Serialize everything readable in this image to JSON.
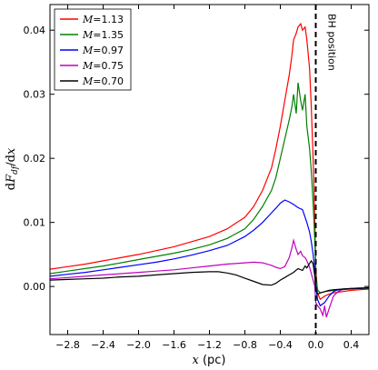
{
  "chart_data": {
    "type": "line",
    "xlabel": "x (pc)",
    "ylabel": "dF_df/dx",
    "xlim": [
      -3.0,
      0.6
    ],
    "ylim": [
      -0.0075,
      0.044
    ],
    "xticks": [
      -2.8,
      -2.4,
      -2.0,
      -1.6,
      -1.2,
      -0.8,
      -0.4,
      0.0,
      0.4
    ],
    "xtick_labels": [
      "−2.8",
      "−2.4",
      "−2.0",
      "−1.6",
      "−1.2",
      "−0.8",
      "−0.4",
      "0.0",
      "0.4"
    ],
    "yticks": [
      0.0,
      0.01,
      0.02,
      0.03,
      0.04
    ],
    "ytick_labels": [
      "0.00",
      "0.01",
      "0.02",
      "0.03",
      "0.04"
    ],
    "legend_position": "top-left",
    "annotation": {
      "text": "BH position",
      "x": 0.0
    },
    "series": [
      {
        "name": "M=1.13",
        "color": "#ff0000",
        "x": [
          -3.0,
          -2.8,
          -2.6,
          -2.4,
          -2.2,
          -2.0,
          -1.8,
          -1.6,
          -1.4,
          -1.2,
          -1.0,
          -0.8,
          -0.7,
          -0.6,
          -0.5,
          -0.45,
          -0.4,
          -0.35,
          -0.3,
          -0.27,
          -0.25,
          -0.22,
          -0.2,
          -0.17,
          -0.15,
          -0.12,
          -0.1,
          -0.07,
          -0.05,
          -0.03,
          -0.01,
          0.0,
          0.02,
          0.05,
          0.1,
          0.15,
          0.2,
          0.3,
          0.4,
          0.5,
          0.6
        ],
        "y": [
          0.0027,
          0.0031,
          0.0035,
          0.004,
          0.0045,
          0.005,
          0.0056,
          0.0062,
          0.007,
          0.0078,
          0.009,
          0.0108,
          0.0125,
          0.015,
          0.0185,
          0.0215,
          0.025,
          0.029,
          0.033,
          0.036,
          0.0385,
          0.0395,
          0.0405,
          0.041,
          0.04,
          0.0405,
          0.0385,
          0.034,
          0.028,
          0.02,
          0.01,
          0.003,
          -0.001,
          -0.002,
          -0.0015,
          -0.0012,
          -0.001,
          -0.0008,
          -0.0006,
          -0.0005,
          -0.0004
        ]
      },
      {
        "name": "M=1.35",
        "color": "#008000",
        "x": [
          -3.0,
          -2.8,
          -2.6,
          -2.4,
          -2.2,
          -2.0,
          -1.8,
          -1.6,
          -1.4,
          -1.2,
          -1.0,
          -0.8,
          -0.7,
          -0.6,
          -0.5,
          -0.45,
          -0.4,
          -0.35,
          -0.3,
          -0.27,
          -0.25,
          -0.22,
          -0.2,
          -0.17,
          -0.15,
          -0.12,
          -0.1,
          -0.07,
          -0.05,
          -0.03,
          -0.01,
          0.0,
          0.02,
          0.05,
          0.1,
          0.15,
          0.2,
          0.3,
          0.4,
          0.5,
          0.6
        ],
        "y": [
          0.002,
          0.0024,
          0.0028,
          0.0032,
          0.0037,
          0.0042,
          0.0047,
          0.0052,
          0.0058,
          0.0065,
          0.0075,
          0.009,
          0.0105,
          0.0125,
          0.015,
          0.017,
          0.02,
          0.023,
          0.026,
          0.028,
          0.03,
          0.027,
          0.0318,
          0.029,
          0.0275,
          0.03,
          0.025,
          0.0215,
          0.018,
          0.013,
          0.007,
          0.002,
          -0.0005,
          -0.001,
          -0.0008,
          -0.0007,
          -0.0006,
          -0.0005,
          -0.0004,
          -0.0003,
          -0.0003
        ]
      },
      {
        "name": "M=0.97",
        "color": "#0000ff",
        "x": [
          -3.0,
          -2.8,
          -2.6,
          -2.4,
          -2.2,
          -2.0,
          -1.8,
          -1.6,
          -1.4,
          -1.2,
          -1.0,
          -0.8,
          -0.7,
          -0.6,
          -0.5,
          -0.45,
          -0.4,
          -0.35,
          -0.3,
          -0.25,
          -0.2,
          -0.15,
          -0.1,
          -0.07,
          -0.05,
          -0.03,
          -0.01,
          0.0,
          0.02,
          0.05,
          0.1,
          0.15,
          0.2,
          0.25,
          0.3,
          0.4,
          0.5,
          0.6
        ],
        "y": [
          0.0016,
          0.0019,
          0.0022,
          0.0026,
          0.003,
          0.0034,
          0.0038,
          0.0043,
          0.0049,
          0.0056,
          0.0064,
          0.0078,
          0.0088,
          0.01,
          0.0115,
          0.0122,
          0.013,
          0.0135,
          0.0132,
          0.0128,
          0.0123,
          0.012,
          0.01,
          0.0085,
          0.007,
          0.005,
          0.0025,
          0.0005,
          -0.002,
          -0.003,
          -0.0025,
          -0.0015,
          -0.0008,
          -0.0005,
          -0.0004,
          -0.0003,
          -0.0003,
          -0.0002
        ]
      },
      {
        "name": "M=0.75",
        "color": "#bf00bf",
        "x": [
          -3.0,
          -2.8,
          -2.6,
          -2.4,
          -2.2,
          -2.0,
          -1.8,
          -1.6,
          -1.4,
          -1.2,
          -1.0,
          -0.8,
          -0.7,
          -0.6,
          -0.5,
          -0.45,
          -0.4,
          -0.35,
          -0.3,
          -0.27,
          -0.25,
          -0.22,
          -0.2,
          -0.17,
          -0.15,
          -0.12,
          -0.1,
          -0.07,
          -0.05,
          -0.03,
          -0.01,
          0.0,
          0.02,
          0.05,
          0.08,
          0.1,
          0.12,
          0.15,
          0.2,
          0.25,
          0.3,
          0.4,
          0.5,
          0.6
        ],
        "y": [
          0.0012,
          0.0014,
          0.0016,
          0.0018,
          0.002,
          0.0022,
          0.0024,
          0.0026,
          0.0029,
          0.0032,
          0.0035,
          0.0037,
          0.0038,
          0.0037,
          0.0033,
          0.003,
          0.0028,
          0.0031,
          0.0045,
          0.006,
          0.0072,
          0.0058,
          0.005,
          0.0055,
          0.0048,
          0.0045,
          0.004,
          0.003,
          0.002,
          0.001,
          0.0,
          -0.0025,
          -0.003,
          -0.0035,
          -0.0045,
          -0.003,
          -0.0048,
          -0.0035,
          -0.0015,
          -0.0008,
          -0.0005,
          -0.0003,
          -0.0002,
          -0.0002
        ]
      },
      {
        "name": "M=0.70",
        "color": "#000000",
        "x": [
          -3.0,
          -2.8,
          -2.6,
          -2.4,
          -2.2,
          -2.0,
          -1.8,
          -1.6,
          -1.4,
          -1.2,
          -1.1,
          -1.0,
          -0.9,
          -0.8,
          -0.7,
          -0.6,
          -0.5,
          -0.45,
          -0.4,
          -0.35,
          -0.3,
          -0.25,
          -0.2,
          -0.15,
          -0.12,
          -0.1,
          -0.07,
          -0.05,
          -0.03,
          -0.01,
          0.0,
          0.02,
          0.05,
          0.1,
          0.15,
          0.2,
          0.3,
          0.4,
          0.5,
          0.6
        ],
        "y": [
          0.001,
          0.0011,
          0.0012,
          0.0013,
          0.0015,
          0.0016,
          0.0018,
          0.002,
          0.0022,
          0.0023,
          0.0023,
          0.0021,
          0.0018,
          0.0013,
          0.0008,
          0.0003,
          0.0002,
          0.0005,
          0.001,
          0.0014,
          0.0018,
          0.0022,
          0.0028,
          0.0025,
          0.0032,
          0.0029,
          0.0036,
          0.004,
          0.0035,
          0.0015,
          -0.0005,
          -0.0012,
          -0.001,
          -0.0008,
          -0.0006,
          -0.0005,
          -0.0004,
          -0.0003,
          -0.0003,
          -0.0002
        ]
      }
    ]
  }
}
